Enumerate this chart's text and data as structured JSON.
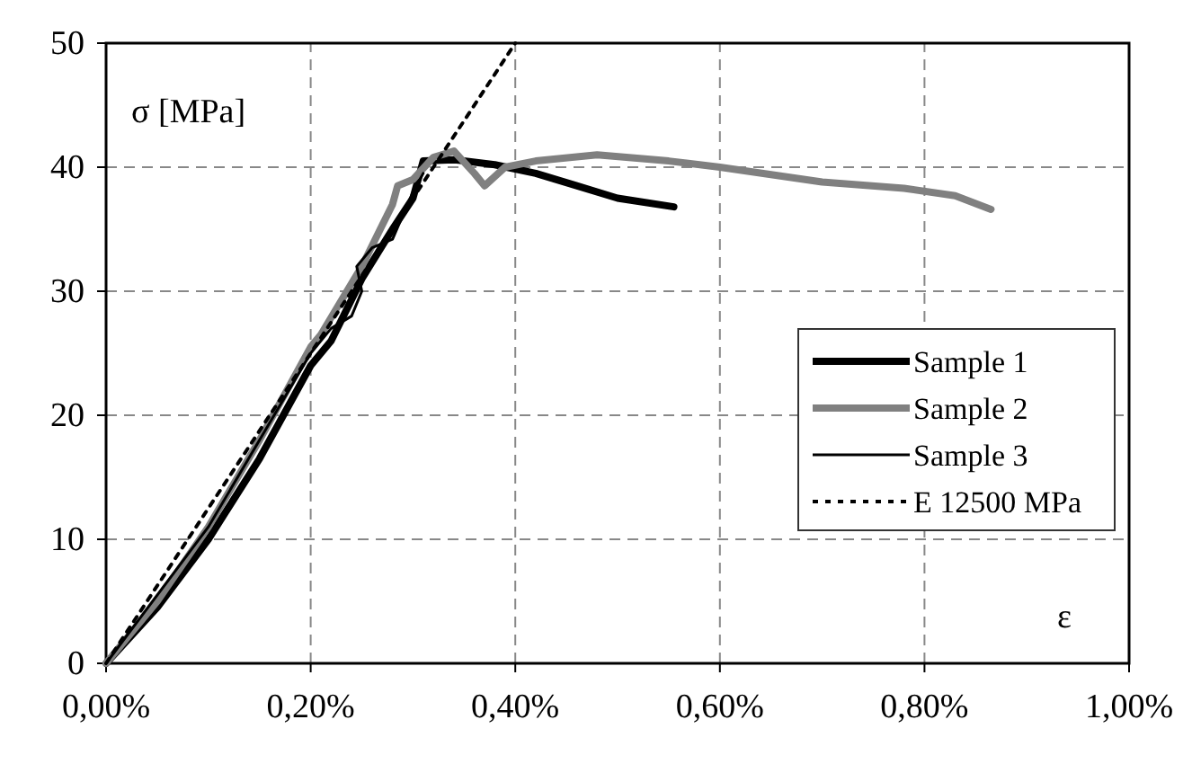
{
  "chart_data": {
    "type": "line",
    "xlabel": "ε",
    "ylabel": "σ [MPa]",
    "xlim": [
      0,
      1
    ],
    "xticks": [
      {
        "value": 0,
        "label": "0,00%"
      },
      {
        "value": 0.2,
        "label": "0,20%"
      },
      {
        "value": 0.4,
        "label": "0,40%"
      },
      {
        "value": 0.6,
        "label": "0,60%"
      },
      {
        "value": 0.8,
        "label": "0,80%"
      },
      {
        "value": 1,
        "label": "1,00%"
      }
    ],
    "ylim": [
      0,
      50
    ],
    "yticks": [
      0,
      10,
      20,
      30,
      40,
      50
    ],
    "grid": true,
    "legend": "right",
    "marker": "none",
    "series": [
      {
        "name": "Sample 1",
        "color": "#000000",
        "line_style": "solid",
        "x": [
          0,
          0.05,
          0.1,
          0.15,
          0.2,
          0.22,
          0.25,
          0.28,
          0.3,
          0.31,
          0.34,
          0.38,
          0.42,
          0.46,
          0.5,
          0.555
        ],
        "values": [
          0,
          4.5,
          10,
          16.5,
          24,
          26,
          31,
          35,
          37.5,
          40.5,
          40.6,
          40.2,
          39.5,
          38.5,
          37.5,
          36.8
        ]
      },
      {
        "name": "Sample 2",
        "color": "#808080",
        "line_style": "solid",
        "x": [
          0,
          0.05,
          0.1,
          0.15,
          0.2,
          0.21,
          0.25,
          0.28,
          0.285,
          0.3,
          0.32,
          0.34,
          0.36,
          0.37,
          0.39,
          0.42,
          0.48,
          0.55,
          0.6,
          0.7,
          0.78,
          0.83,
          0.865
        ],
        "values": [
          0,
          5,
          11,
          18,
          25.5,
          26.5,
          32,
          37,
          38.5,
          39,
          40.8,
          41.3,
          39.5,
          38.5,
          40,
          40.5,
          41,
          40.5,
          40,
          38.8,
          38.3,
          37.7,
          36.6
        ]
      },
      {
        "name": "Sample 3",
        "color": "#000000",
        "line_style": "solid",
        "x": [
          0,
          0.1,
          0.2,
          0.22,
          0.24,
          0.25,
          0.245,
          0.26,
          0.28,
          0.3,
          0.31
        ],
        "values": [
          0,
          11,
          25,
          27,
          28,
          30,
          32,
          33.5,
          34.2,
          38,
          39.5
        ]
      },
      {
        "name": "E 12500 MPa",
        "color": "#000000",
        "line_style": "dotted",
        "x": [
          0,
          0.4
        ],
        "values": [
          0,
          50
        ]
      }
    ]
  }
}
